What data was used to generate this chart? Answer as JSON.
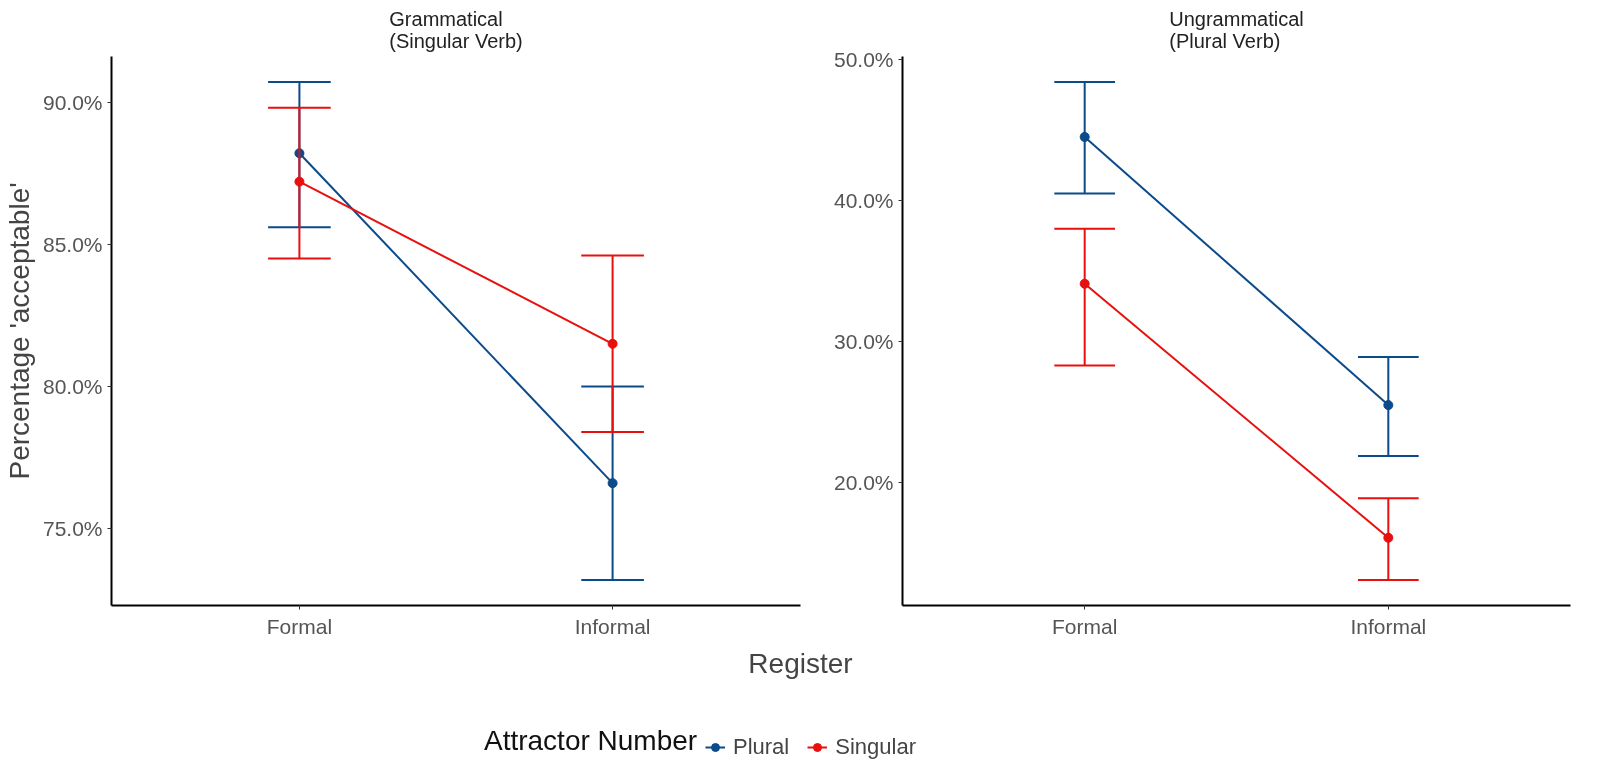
{
  "chart_data": [
    {
      "type": "line",
      "title": "Grammatical\n(Singular Verb)",
      "categories": [
        "Formal",
        "Informal"
      ],
      "xlabel": "Register",
      "ylabel": "Percentage 'acceptable'",
      "legend": "bottom",
      "legend_title": "Attractor Number",
      "marker": "circle",
      "line_style": "solid",
      "grid": false,
      "ylim": [
        72.3,
        91.6
      ],
      "yticks": [
        {
          "value": 75,
          "label": "75.0%"
        },
        {
          "value": 80,
          "label": "80.0%"
        },
        {
          "value": 85,
          "label": "85.0%"
        },
        {
          "value": 90,
          "label": "90.0%"
        }
      ],
      "series": [
        {
          "name": "Plural",
          "color": "#0b4a8b",
          "values": [
            88.2,
            76.6
          ],
          "errors": [
            [
              85.6,
              90.7
            ],
            [
              73.2,
              80.0
            ]
          ]
        },
        {
          "name": "Singular",
          "color": "#e8100f",
          "values": [
            87.2,
            81.5
          ],
          "errors": [
            [
              84.5,
              89.8
            ],
            [
              78.4,
              84.6
            ]
          ]
        }
      ]
    },
    {
      "type": "line",
      "title": "Ungrammatical\n(Plural Verb)",
      "categories": [
        "Formal",
        "Informal"
      ],
      "marker": "circle",
      "line_style": "solid",
      "grid": false,
      "ylim": [
        11.3,
        50.2
      ],
      "yticks": [
        {
          "value": 20,
          "label": "20.0%"
        },
        {
          "value": 30,
          "label": "30.0%"
        },
        {
          "value": 40,
          "label": "40.0%"
        },
        {
          "value": 50,
          "label": "50.0%"
        }
      ],
      "series": [
        {
          "color": "#0b4a8b",
          "values": [
            44.5,
            25.5
          ],
          "errors": [
            [
              40.5,
              48.4
            ],
            [
              21.9,
              28.9
            ]
          ]
        },
        {
          "color": "#e8100f",
          "values": [
            34.1,
            16.1
          ],
          "errors": [
            [
              28.3,
              38.0
            ],
            [
              13.1,
              18.9
            ]
          ]
        }
      ]
    }
  ]
}
